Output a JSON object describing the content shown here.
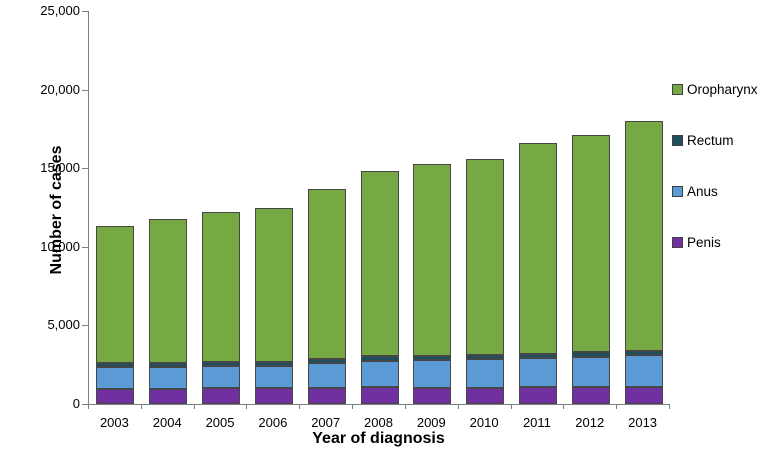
{
  "chart_data": {
    "type": "bar",
    "subtype": "stacked-vertical",
    "title": "",
    "xlabel": "Year of diagnosis",
    "ylabel": "Number of cases",
    "ylim": [
      0,
      25000
    ],
    "ytick_step": 5000,
    "ytick_labels": [
      "0",
      "5,000",
      "10,000",
      "15,000",
      "20,000",
      "25,000"
    ],
    "grid": false,
    "categories": [
      "2003",
      "2004",
      "2005",
      "2006",
      "2007",
      "2008",
      "2009",
      "2010",
      "2011",
      "2012",
      "2013"
    ],
    "series": [
      {
        "name": "Penis",
        "color": "#7030A0",
        "values": [
          950,
          950,
          1000,
          1000,
          1050,
          1100,
          1050,
          1050,
          1100,
          1100,
          1100
        ]
      },
      {
        "name": "Anus",
        "color": "#5B9BD5",
        "values": [
          1400,
          1400,
          1450,
          1450,
          1550,
          1650,
          1750,
          1800,
          1800,
          1900,
          2000
        ]
      },
      {
        "name": "Rectum",
        "color": "#1F4E5F",
        "values": [
          250,
          250,
          250,
          250,
          280,
          280,
          280,
          280,
          300,
          300,
          300
        ]
      },
      {
        "name": "Oropharynx",
        "color": "#76A844",
        "values": [
          8700,
          9200,
          9500,
          9800,
          10820,
          11770,
          12220,
          12470,
          13400,
          13800,
          14600
        ]
      }
    ],
    "totals": [
      11300,
      11800,
      12200,
      12500,
      13700,
      14800,
      15300,
      15600,
      16600,
      17100,
      18000
    ],
    "legend": {
      "position": "right",
      "items": [
        {
          "label": "Oropharynx",
          "color": "#76A844"
        },
        {
          "label": "Rectum",
          "color": "#1F4E5F"
        },
        {
          "label": "Anus",
          "color": "#5B9BD5"
        },
        {
          "label": "Penis",
          "color": "#7030A0"
        }
      ]
    },
    "colors": {
      "axis": "#7f7f7f",
      "bar_border": "#464646",
      "text": "#000000",
      "background": "#ffffff"
    }
  }
}
